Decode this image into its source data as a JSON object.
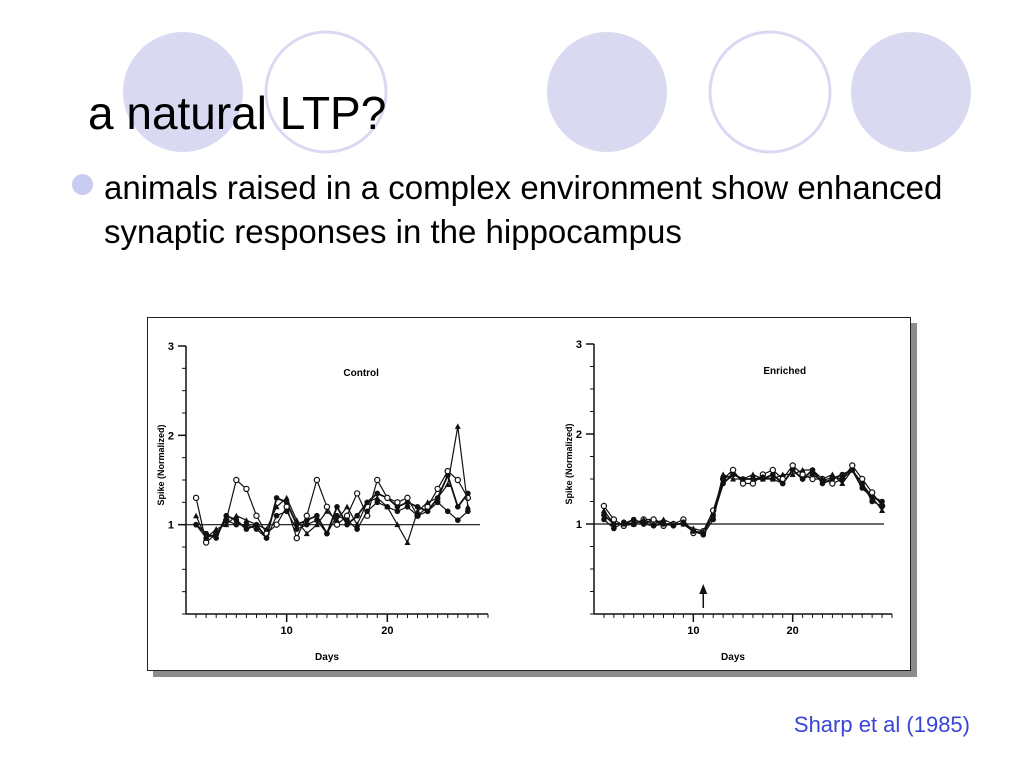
{
  "slide": {
    "title": "a natural LTP?",
    "bullet": "animals raised in a complex environment show enhanced synaptic responses in the hippocampus",
    "citation": "Sharp et al (1985)",
    "colors": {
      "circle_fill": "#d9daf2",
      "circle_stroke": "#d9daf2",
      "bullet": "#c9cbf0",
      "citation": "#3a44d8"
    }
  },
  "chart_data": [
    {
      "type": "line",
      "title": "Control",
      "xlabel": "Days",
      "ylabel": "Spike (Normalized)",
      "x_ticks": [
        10,
        20
      ],
      "y_ticks": [
        1,
        2,
        3
      ],
      "xlim": [
        0,
        30
      ],
      "ylim": [
        0,
        3
      ],
      "reference_line": 1,
      "x": [
        1,
        2,
        3,
        4,
        5,
        6,
        7,
        8,
        9,
        10,
        11,
        12,
        13,
        14,
        15,
        16,
        17,
        18,
        19,
        20,
        21,
        22,
        23,
        24,
        25,
        26,
        27,
        28
      ],
      "series": [
        {
          "marker": "filled",
          "values": [
            1.0,
            0.9,
            0.85,
            1.1,
            1.05,
            0.95,
            1.0,
            0.85,
            1.3,
            1.25,
            1.0,
            1.05,
            1.1,
            0.9,
            1.2,
            1.0,
            1.1,
            1.25,
            1.35,
            1.3,
            1.2,
            1.25,
            1.2,
            1.15,
            1.3,
            1.55,
            1.2,
            1.35
          ]
        },
        {
          "marker": "open",
          "values": [
            1.3,
            0.8,
            0.9,
            1.05,
            1.5,
            1.4,
            1.1,
            0.9,
            1.0,
            1.2,
            0.85,
            1.1,
            1.5,
            1.2,
            1.0,
            1.1,
            1.35,
            1.1,
            1.5,
            1.3,
            1.25,
            1.3,
            1.1,
            1.2,
            1.4,
            1.6,
            1.5,
            1.3
          ]
        },
        {
          "marker": "triangle",
          "values": [
            1.1,
            0.85,
            0.95,
            1.0,
            1.1,
            1.05,
            1.0,
            0.95,
            1.2,
            1.3,
            1.05,
            0.9,
            1.0,
            1.15,
            1.05,
            1.2,
            1.0,
            1.25,
            1.3,
            1.2,
            1.0,
            0.8,
            1.15,
            1.25,
            1.3,
            1.45,
            2.1,
            1.2
          ]
        },
        {
          "marker": "filled",
          "values": [
            1.0,
            0.85,
            0.9,
            1.05,
            1.0,
            1.0,
            0.95,
            0.85,
            1.1,
            1.15,
            0.95,
            1.0,
            1.05,
            0.9,
            1.1,
            1.05,
            0.95,
            1.15,
            1.25,
            1.2,
            1.15,
            1.2,
            1.1,
            1.15,
            1.25,
            1.15,
            1.05,
            1.15
          ]
        }
      ]
    },
    {
      "type": "line",
      "title": "Enriched",
      "xlabel": "Days",
      "ylabel": "Spike (Normalized)",
      "x_ticks": [
        10,
        20
      ],
      "y_ticks": [
        1,
        2,
        3
      ],
      "xlim": [
        0,
        30
      ],
      "ylim": [
        0,
        3
      ],
      "reference_line": 1,
      "arrow_at_x": 11,
      "x": [
        1,
        2,
        3,
        4,
        5,
        6,
        7,
        8,
        9,
        10,
        11,
        12,
        13,
        14,
        15,
        16,
        17,
        18,
        19,
        20,
        21,
        22,
        23,
        24,
        25,
        26,
        27,
        28,
        29
      ],
      "series": [
        {
          "marker": "filled",
          "values": [
            1.1,
            1.0,
            1.0,
            1.05,
            1.0,
            1.05,
            1.0,
            1.0,
            1.0,
            0.92,
            0.9,
            1.1,
            1.45,
            1.55,
            1.5,
            1.5,
            1.5,
            1.55,
            1.45,
            1.6,
            1.5,
            1.6,
            1.45,
            1.5,
            1.55,
            1.6,
            1.4,
            1.3,
            1.25
          ]
        },
        {
          "marker": "open",
          "values": [
            1.2,
            1.05,
            0.98,
            1.0,
            1.05,
            1.05,
            0.98,
            1.0,
            1.05,
            0.9,
            0.92,
            1.15,
            1.5,
            1.6,
            1.45,
            1.45,
            1.55,
            1.6,
            1.5,
            1.65,
            1.55,
            1.5,
            1.5,
            1.45,
            1.5,
            1.65,
            1.5,
            1.35,
            1.2
          ]
        },
        {
          "marker": "filled",
          "values": [
            1.05,
            0.95,
            1.02,
            1.0,
            1.0,
            0.98,
            1.0,
            0.98,
            1.02,
            0.92,
            0.88,
            1.05,
            1.5,
            1.55,
            1.5,
            1.5,
            1.52,
            1.5,
            1.45,
            1.6,
            1.5,
            1.55,
            1.48,
            1.52,
            1.5,
            1.6,
            1.45,
            1.25,
            1.2
          ]
        },
        {
          "marker": "triangle",
          "values": [
            1.15,
            1.0,
            1.0,
            1.0,
            1.05,
            1.0,
            1.05,
            1.0,
            1.0,
            0.95,
            0.92,
            1.1,
            1.55,
            1.5,
            1.5,
            1.55,
            1.5,
            1.5,
            1.55,
            1.55,
            1.6,
            1.6,
            1.5,
            1.55,
            1.45,
            1.6,
            1.45,
            1.3,
            1.15
          ]
        }
      ]
    }
  ]
}
